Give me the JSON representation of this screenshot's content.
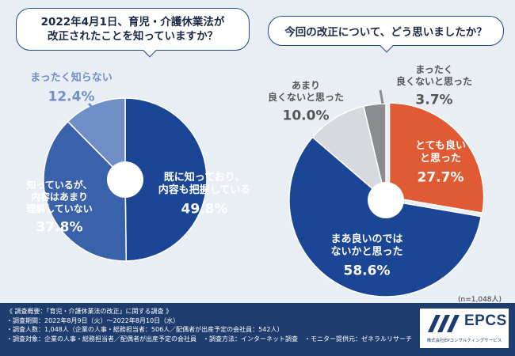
{
  "colors": {
    "accent_dark": "#1e3d6e",
    "blue_dark": "#1b4595",
    "blue_mid": "#3a62aa",
    "blue_light": "#6f8fc6",
    "orange": "#e05a33",
    "grey_light": "#d6d9dd",
    "grey_dark": "#8a8c8e"
  },
  "chart_data": [
    {
      "type": "pie",
      "title": "2022年4月1日、育児・介護休業法が改正されたことを知っていますか？",
      "title_lines": [
        "2022年4月1日、育児・介護休業法が",
        "改正されたことを知っていますか？"
      ],
      "slices": [
        {
          "label": "既に知っており、内容も把握している",
          "label_lines": [
            "既に知っており、",
            "内容も把握している"
          ],
          "value": 49.8,
          "value_text": "49.8%"
        },
        {
          "label": "知っているが、内容はあまり理解していない",
          "label_lines": [
            "知っているが、",
            "内容はあまり",
            "理解していない"
          ],
          "value": 37.8,
          "value_text": "37.8%"
        },
        {
          "label": "まったく知らない",
          "label_lines": [
            "まったく知らない"
          ],
          "value": 12.4,
          "value_text": "12.4%"
        }
      ]
    },
    {
      "type": "pie",
      "title": "今回の改正について、どう思いましたか？",
      "slices": [
        {
          "label": "とても良いと思った",
          "label_lines": [
            "とても良い",
            "と思った"
          ],
          "value": 27.7,
          "value_text": "27.7%"
        },
        {
          "label": "まあ良いのではないかと思った",
          "label_lines": [
            "まあ良いのでは",
            "ないかと思った"
          ],
          "value": 58.6,
          "value_text": "58.6%"
        },
        {
          "label": "あまり良くないと思った",
          "label_lines": [
            "あまり",
            "良くないと思った"
          ],
          "value": 10.0,
          "value_text": "10.0%"
        },
        {
          "label": "まったく良くないと思った",
          "label_lines": [
            "まったく",
            "良くないと思った"
          ],
          "value": 3.7,
          "value_text": "3.7%"
        }
      ]
    }
  ],
  "sample_size": "(n=1,048人)",
  "footer": {
    "lines": [
      "《 調査概要：「育児・介護休業法の改正」に関する調査 》",
      "・調査期間：2022年8月9日（火）～2022年8月10日（水）",
      "・調査人数：1,048人（企業の人事・総務担当者：506人／配偶者が出産予定の会社員：542人）",
      "・調査対象：企業の人事・総務担当者／配偶者が出産予定の会社員　・調査方法：インターネット調査　・モニター提供元：ゼネラルリサーチ"
    ]
  },
  "logo": {
    "text": "EPCS",
    "subtitle": "株式会社EPコンサルティングサービス"
  }
}
